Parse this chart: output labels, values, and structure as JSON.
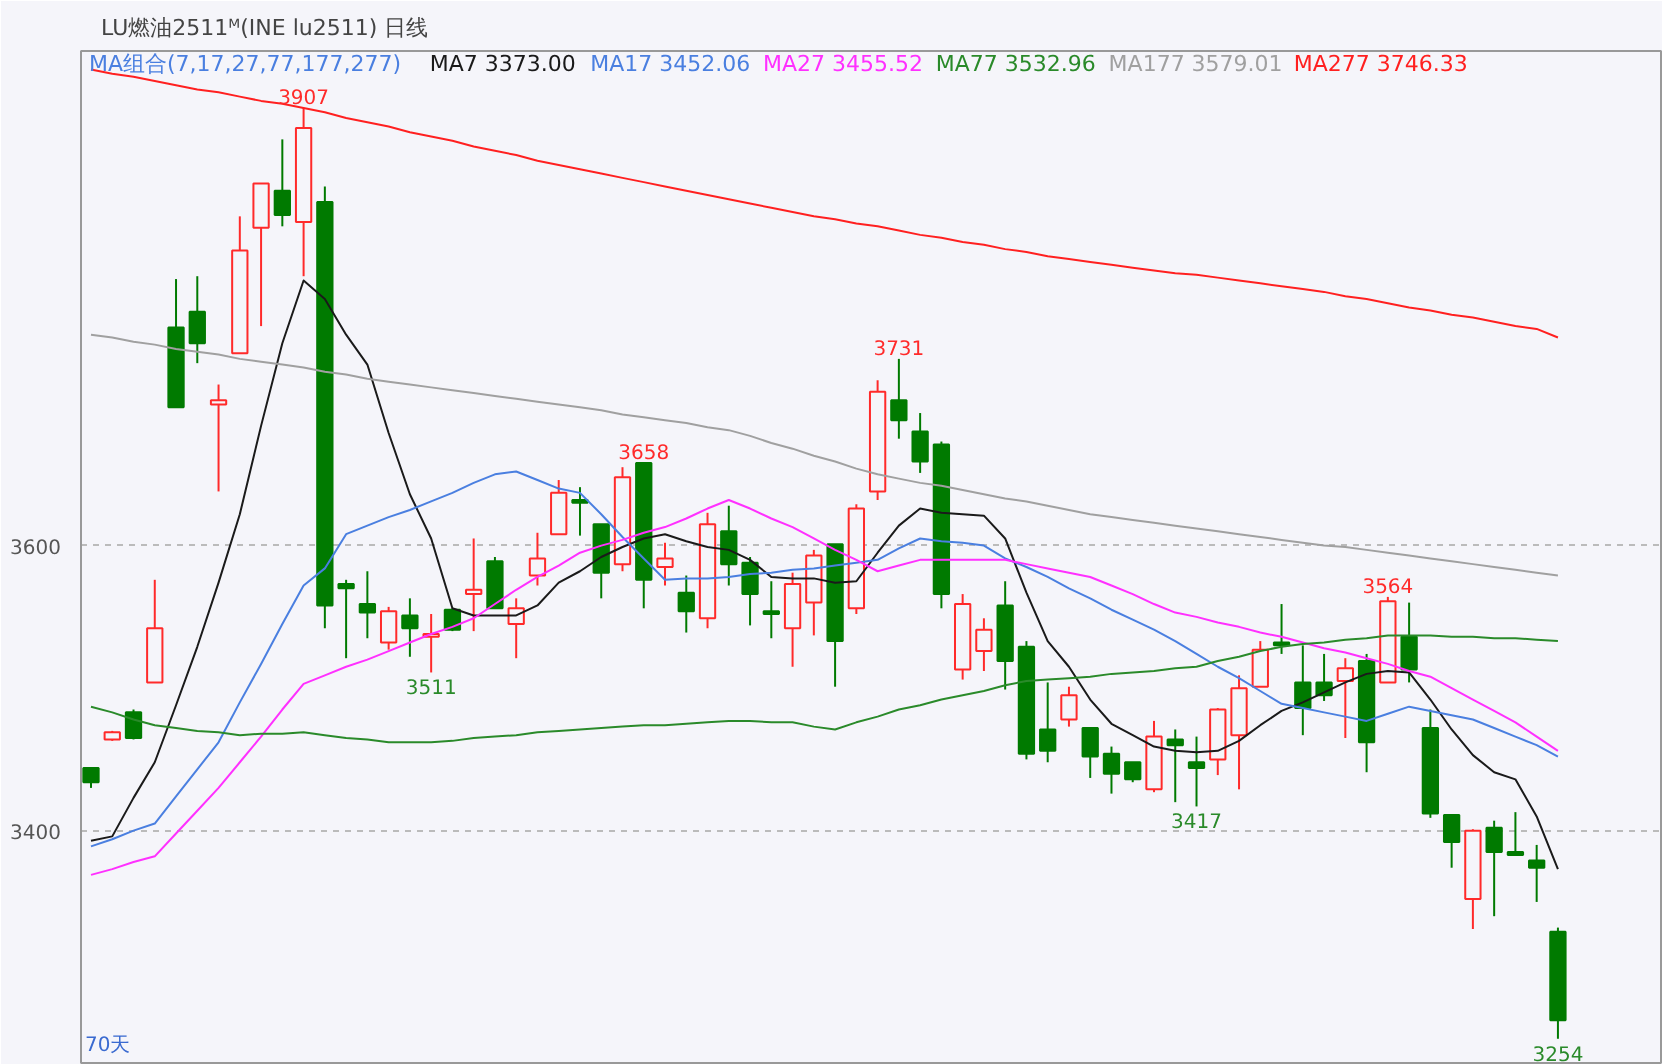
{
  "chart_data": {
    "type": "candlestick",
    "title": "LU燃油2511ᴹ(INE lu2511)",
    "subtitle": "日线",
    "legend_title": "MA组合(7,17,27,77,177,277)",
    "categories": [
      null,
      null,
      null,
      null,
      null,
      null,
      null,
      null,
      null,
      null,
      null,
      null,
      null,
      null,
      null,
      null,
      null,
      null,
      null,
      null,
      null,
      null,
      null,
      null,
      null,
      null,
      null,
      null,
      null,
      null,
      null,
      null,
      null,
      null,
      null,
      null,
      null,
      null,
      null,
      null,
      null,
      null,
      null,
      null,
      null,
      null,
      null,
      null,
      null,
      null,
      null,
      null,
      null,
      null,
      null,
      null,
      null,
      null,
      null,
      null,
      null,
      null,
      null,
      null,
      null,
      null,
      null,
      null,
      null,
      null
    ],
    "ohlc": [
      [
        3444,
        3444,
        3430,
        3434
      ],
      [
        3464,
        3470,
        3463,
        3469
      ],
      [
        3483,
        3485,
        3464,
        3465
      ],
      [
        3504,
        3576,
        3504,
        3542
      ],
      [
        3753,
        3787,
        3697,
        3697
      ],
      [
        3764,
        3789,
        3728,
        3742
      ],
      [
        3699,
        3713,
        3638,
        3702
      ],
      [
        3735,
        3831,
        3735,
        3807
      ],
      [
        3823,
        3854,
        3754,
        3854
      ],
      [
        3849,
        3885,
        3824,
        3832
      ],
      [
        3827,
        3907,
        3789,
        3893
      ],
      [
        3841,
        3852,
        3542,
        3558
      ],
      [
        3573,
        3576,
        3521,
        3570
      ],
      [
        3559,
        3582,
        3535,
        3553
      ],
      [
        3532,
        3557,
        3527,
        3554
      ],
      [
        3551,
        3563,
        3522,
        3542
      ],
      [
        3536,
        3552,
        3511,
        3538
      ],
      [
        3555,
        3556,
        3540,
        3541
      ],
      [
        3566,
        3605,
        3540,
        3569
      ],
      [
        3589,
        3592,
        3556,
        3556
      ],
      [
        3545,
        3563,
        3521,
        3556
      ],
      [
        3579,
        3609,
        3572,
        3591
      ],
      [
        3608,
        3646,
        3608,
        3637
      ],
      [
        3632,
        3641,
        3607,
        3630
      ],
      [
        3615,
        3615,
        3563,
        3581
      ],
      [
        3587,
        3655,
        3582,
        3648
      ],
      [
        3658,
        3658,
        3556,
        3576
      ],
      [
        3585,
        3602,
        3572,
        3591
      ],
      [
        3567,
        3579,
        3539,
        3554
      ],
      [
        3549,
        3623,
        3542,
        3615
      ],
      [
        3610,
        3628,
        3572,
        3587
      ],
      [
        3588,
        3592,
        3544,
        3566
      ],
      [
        3554,
        3575,
        3535,
        3552
      ],
      [
        3542,
        3581,
        3515,
        3573
      ],
      [
        3560,
        3597,
        3537,
        3593
      ],
      [
        3601,
        3601,
        3501,
        3533
      ],
      [
        3556,
        3629,
        3552,
        3626
      ],
      [
        3638,
        3716,
        3632,
        3708
      ],
      [
        3702,
        3731,
        3675,
        3688
      ],
      [
        3680,
        3693,
        3651,
        3659
      ],
      [
        3671,
        3673,
        3556,
        3566
      ],
      [
        3513,
        3566,
        3506,
        3559
      ],
      [
        3526,
        3549,
        3512,
        3541
      ],
      [
        3558,
        3575,
        3499,
        3519
      ],
      [
        3529,
        3533,
        3450,
        3454
      ],
      [
        3471,
        3504,
        3448,
        3456
      ],
      [
        3478,
        3501,
        3473,
        3495
      ],
      [
        3472,
        3472,
        3437,
        3452
      ],
      [
        3454,
        3459,
        3426,
        3440
      ],
      [
        3448,
        3448,
        3434,
        3436
      ],
      [
        3429,
        3477,
        3427,
        3466
      ],
      [
        3464,
        3471,
        3420,
        3460
      ],
      [
        3448,
        3466,
        3417,
        3444
      ],
      [
        3450,
        3486,
        3439,
        3485
      ],
      [
        3467,
        3509,
        3429,
        3500
      ],
      [
        3501,
        3533,
        3501,
        3527
      ],
      [
        3532,
        3559,
        3524,
        3530
      ],
      [
        3504,
        3530,
        3467,
        3486
      ],
      [
        3504,
        3524,
        3491,
        3495
      ],
      [
        3505,
        3521,
        3465,
        3514
      ],
      [
        3519,
        3524,
        3441,
        3462
      ],
      [
        3504,
        3564,
        3504,
        3561
      ],
      [
        3536,
        3560,
        3504,
        3513
      ],
      [
        3472,
        3485,
        3409,
        3412
      ],
      [
        3411,
        3411,
        3374,
        3392
      ],
      [
        3352,
        3401,
        3331,
        3400
      ],
      [
        3402,
        3407,
        3340,
        3385
      ],
      [
        3385,
        3413,
        3383,
        3383
      ],
      [
        3379,
        3390,
        3350,
        3374
      ],
      [
        3329,
        3332,
        3254,
        3267
      ]
    ],
    "series": [
      {
        "type": "line",
        "name": "MA7 3373.00",
        "color": "#1a1a1a",
        "values": [
          3393,
          3396,
          3423,
          3448,
          3488,
          3529,
          3574,
          3622,
          3684,
          3742,
          3786,
          3773,
          3748,
          3727,
          3679,
          3636,
          3605,
          3556,
          3551,
          3551,
          3551,
          3558,
          3574,
          3582,
          3592,
          3599,
          3605,
          3608,
          3603,
          3599,
          3597,
          3590,
          3578,
          3577,
          3577,
          3574,
          3575,
          3595,
          3614,
          3626,
          3623,
          3622,
          3621,
          3605,
          3567,
          3533,
          3515,
          3492,
          3475,
          3467,
          3459,
          3456,
          3455,
          3456,
          3463,
          3474,
          3484,
          3490,
          3497,
          3504,
          3510,
          3512,
          3511,
          3492,
          3471,
          3453,
          3441,
          3436,
          3410,
          3373
        ]
      },
      {
        "type": "line",
        "name": "MA17 3452.06",
        "color": "#4a7fe0",
        "values": [
          3389,
          3394,
          3400,
          3405,
          3424,
          3443,
          3462,
          3490,
          3517,
          3545,
          3572,
          3584,
          3608,
          3614,
          3620,
          3625,
          3631,
          3637,
          3644,
          3650,
          3652,
          3646,
          3640,
          3637,
          3622,
          3606,
          3591,
          3576,
          3577,
          3577,
          3578,
          3580,
          3581,
          3583,
          3584,
          3586,
          3588,
          3590,
          3598,
          3605,
          3603,
          3602,
          3600,
          3591,
          3585,
          3578,
          3570,
          3563,
          3555,
          3548,
          3541,
          3533,
          3524,
          3515,
          3507,
          3498,
          3489,
          3486,
          3483,
          3480,
          3477,
          3482,
          3487,
          3484,
          3481,
          3478,
          3472,
          3466,
          3460,
          3452
        ]
      },
      {
        "type": "line",
        "name": "MA27 3455.52",
        "color": "#ff30ff",
        "values": [
          3369,
          3373,
          3378,
          3382,
          3398,
          3414,
          3430,
          3448,
          3466,
          3485,
          3503,
          3509,
          3515,
          3520,
          3526,
          3532,
          3538,
          3543,
          3549,
          3559,
          3569,
          3578,
          3586,
          3595,
          3600,
          3604,
          3609,
          3613,
          3619,
          3626,
          3632,
          3626,
          3619,
          3613,
          3605,
          3597,
          3590,
          3582,
          3586,
          3590,
          3590,
          3590,
          3590,
          3590,
          3587,
          3584,
          3581,
          3578,
          3572,
          3566,
          3559,
          3553,
          3550,
          3546,
          3543,
          3539,
          3536,
          3532,
          3528,
          3525,
          3521,
          3517,
          3512,
          3508,
          3500,
          3492,
          3484,
          3476,
          3466,
          3456
        ]
      },
      {
        "type": "line",
        "name": "MA77 3532.96",
        "color": "#2a8a2a",
        "values": [
          3487,
          3483,
          3478,
          3474,
          3472,
          3470,
          3469,
          3467,
          3468,
          3468,
          3469,
          3467,
          3465,
          3464,
          3462,
          3462,
          3462,
          3463,
          3465,
          3466,
          3467,
          3469,
          3470,
          3471,
          3472,
          3473,
          3474,
          3474,
          3475,
          3476,
          3477,
          3477,
          3476,
          3476,
          3473,
          3471,
          3476,
          3480,
          3485,
          3488,
          3492,
          3495,
          3498,
          3502,
          3505,
          3506,
          3507,
          3508,
          3510,
          3511,
          3512,
          3514,
          3515,
          3519,
          3522,
          3526,
          3529,
          3531,
          3532,
          3534,
          3535,
          3537,
          3537,
          3537,
          3536,
          3536,
          3535,
          3535,
          3534,
          3533
        ]
      },
      {
        "type": "line",
        "name": "MA177 3579.01",
        "color": "#a0a0a0",
        "values": [
          3748,
          3746,
          3743,
          3741,
          3738,
          3736,
          3734,
          3731,
          3729,
          3727,
          3725,
          3722,
          3720,
          3717,
          3715,
          3713,
          3711,
          3709,
          3707,
          3705,
          3703,
          3701,
          3699,
          3697,
          3695,
          3692,
          3690,
          3688,
          3686,
          3683,
          3681,
          3677,
          3672,
          3668,
          3663,
          3659,
          3654,
          3650,
          3647,
          3644,
          3642,
          3639,
          3636,
          3633,
          3631,
          3628,
          3625,
          3622,
          3620,
          3618,
          3616,
          3614,
          3612,
          3610,
          3608,
          3606,
          3604,
          3602,
          3600,
          3599,
          3597,
          3595,
          3593,
          3591,
          3589,
          3587,
          3585,
          3583,
          3581,
          3579
        ]
      },
      {
        "type": "line",
        "name": "MA277 3746.33",
        "color": "#ff2020",
        "values": [
          3934,
          3931,
          3929,
          3926,
          3923,
          3920,
          3918,
          3915,
          3912,
          3910,
          3907,
          3904,
          3900,
          3897,
          3894,
          3890,
          3887,
          3884,
          3880,
          3877,
          3874,
          3870,
          3867,
          3864,
          3861,
          3858,
          3855,
          3852,
          3849,
          3846,
          3843,
          3840,
          3837,
          3834,
          3831,
          3829,
          3826,
          3824,
          3821,
          3818,
          3816,
          3813,
          3811,
          3808,
          3806,
          3803,
          3801,
          3799,
          3797,
          3795,
          3793,
          3791,
          3790,
          3788,
          3786,
          3784,
          3782,
          3780,
          3778,
          3775,
          3773,
          3770,
          3767,
          3765,
          3762,
          3760,
          3757,
          3754,
          3752,
          3746
        ]
      }
    ],
    "annotations": [
      {
        "text": "3907",
        "y": 3907
      },
      {
        "text": "3658",
        "y": 3658
      },
      {
        "text": "3731",
        "y": 3731
      },
      {
        "text": "3564",
        "y": 3564
      },
      {
        "text": "3511",
        "y": 3511
      },
      {
        "text": "3417",
        "y": 3417
      },
      {
        "text": "3254",
        "y": 3254
      },
      "70天"
    ],
    "ylim": [
      3237,
      3947
    ],
    "yticks": [
      3400,
      3600
    ],
    "grid": "y",
    "legend": "top",
    "tick_labels": "y"
  }
}
